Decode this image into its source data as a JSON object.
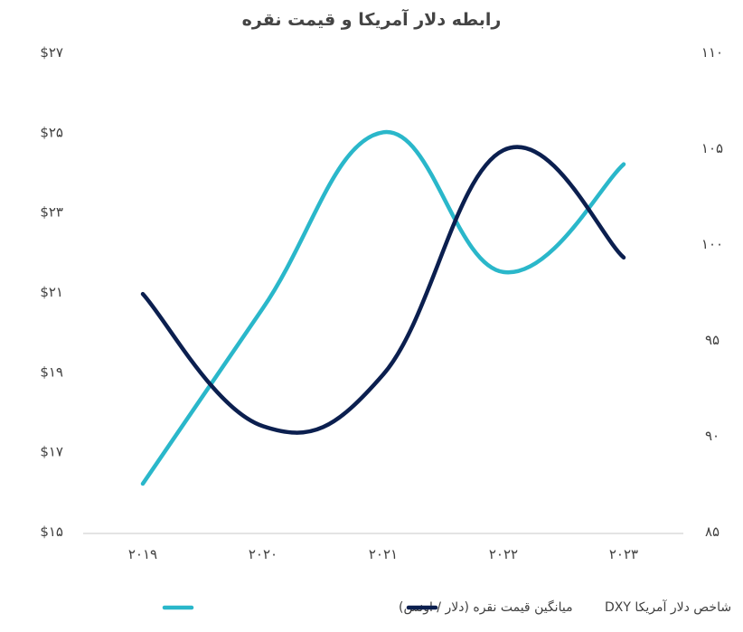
{
  "chart_data": {
    "type": "line",
    "title": "رابطه دلار آمریکا و قیمت نقره",
    "x": [
      "۲۰۱۹",
      "۲۰۲۰",
      "۲۰۲۱",
      "۲۰۲۲",
      "۲۰۲۳"
    ],
    "y_left": {
      "ticks": [
        "$۲۷",
        "$۲۵",
        "$۲۳",
        "$۲۱",
        "$۱۹",
        "$۱۷",
        "$۱۵"
      ],
      "tick_values": [
        27,
        25,
        23,
        21,
        19,
        17,
        15
      ],
      "ylim": [
        15,
        27
      ]
    },
    "y_right": {
      "ticks": [
        "۱۱۰",
        "۱۰۵",
        "۱۰۰",
        "۹۵",
        "۹۰",
        "۸۵"
      ],
      "tick_values": [
        110,
        105,
        100,
        95,
        90,
        85
      ],
      "ylim": [
        85,
        110
      ]
    },
    "series": [
      {
        "name": "میانگین قیمت نقره (دلار / اونس)",
        "axis": "left",
        "color": "#2ab7ca",
        "values": [
          16.2,
          20.6,
          25.0,
          21.5,
          24.2
        ]
      },
      {
        "name": "شاخص دلار آمریکا DXY",
        "axis": "right",
        "color": "#0b1f4f",
        "values": [
          97.4,
          90.5,
          93.2,
          104.9,
          99.3
        ]
      }
    ],
    "legend_position": "bottom",
    "grid": false
  }
}
